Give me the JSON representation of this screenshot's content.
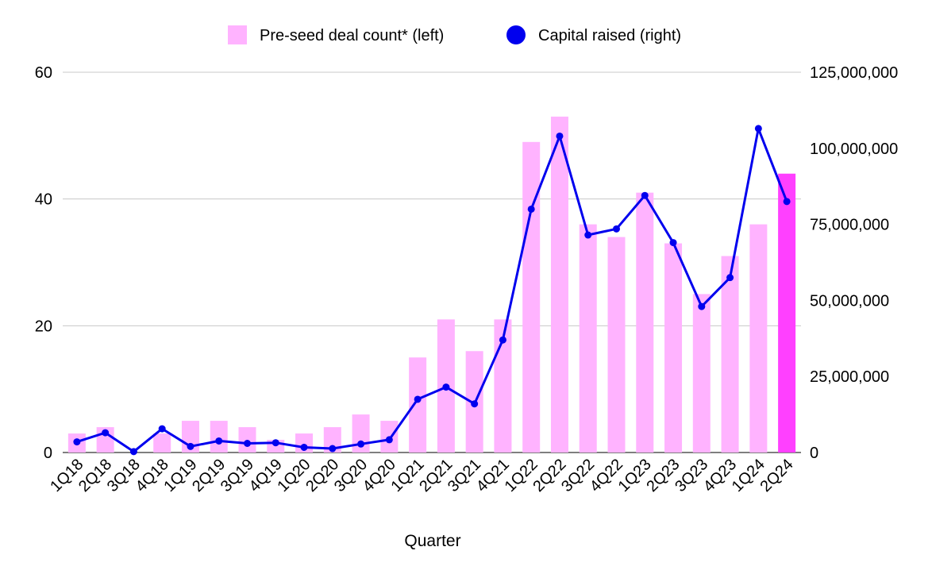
{
  "chart_data": {
    "type": "bar",
    "categories": [
      "1Q18",
      "2Q18",
      "3Q18",
      "4Q18",
      "1Q19",
      "2Q19",
      "3Q19",
      "4Q19",
      "1Q20",
      "2Q20",
      "3Q20",
      "4Q20",
      "1Q21",
      "2Q21",
      "3Q21",
      "4Q21",
      "1Q22",
      "2Q22",
      "3Q22",
      "4Q22",
      "1Q23",
      "2Q23",
      "3Q23",
      "4Q23",
      "1Q24",
      "2Q24"
    ],
    "xlabel": "Quarter",
    "series": [
      {
        "name": "Pre-seed deal count* (left)",
        "type": "bar",
        "axis": "left",
        "color": "#ffb3ff",
        "highlight_color": "#ff40ff",
        "highlight_index": 25,
        "values": [
          3,
          4,
          0,
          3,
          5,
          5,
          4,
          2,
          3,
          4,
          6,
          5,
          15,
          21,
          16,
          21,
          49,
          53,
          36,
          34,
          41,
          33,
          25,
          31,
          36,
          44
        ]
      },
      {
        "name": "Capital raised (right)",
        "type": "line",
        "axis": "right",
        "color": "#0000ee",
        "values": [
          3500000,
          6500000,
          300000,
          7800000,
          2000000,
          3800000,
          3000000,
          3200000,
          1700000,
          1300000,
          2800000,
          4200000,
          17500000,
          21500000,
          16000000,
          37000000,
          80000000,
          104000000,
          71500000,
          73500000,
          84500000,
          69000000,
          48000000,
          57500000,
          106500000,
          82500000
        ]
      }
    ],
    "left_axis": {
      "ylim": [
        0,
        60
      ],
      "ticks": [
        "0",
        "20",
        "40",
        "60"
      ],
      "tick_values": [
        0,
        20,
        40,
        60
      ]
    },
    "right_axis": {
      "ylim": [
        0,
        125000000
      ],
      "ticks": [
        "0",
        "25,000,000",
        "50,000,000",
        "75,000,000",
        "100,000,000",
        "125,000,000"
      ],
      "tick_values": [
        0,
        25000000,
        50000000,
        75000000,
        100000000,
        125000000
      ]
    },
    "grid": true,
    "legend_position": "top-center"
  }
}
